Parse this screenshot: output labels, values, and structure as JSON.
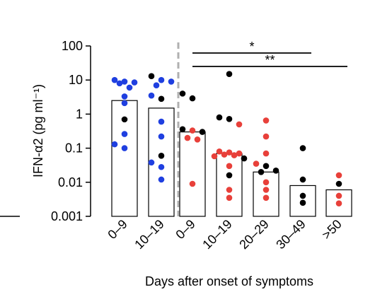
{
  "chart_data": {
    "type": "scatter",
    "title": "",
    "xlabel": "Days after onset of symptoms",
    "ylabel": "IFN-α2 (pg ml⁻¹)",
    "yscale": "log",
    "ylim": [
      0.001,
      100
    ],
    "yticks": [
      {
        "value": 0.001,
        "label": "0.001"
      },
      {
        "value": 0.01,
        "label": "0.01"
      },
      {
        "value": 0.1,
        "label": "0.1"
      },
      {
        "value": 1,
        "label": "1"
      },
      {
        "value": 10,
        "label": "10"
      },
      {
        "value": 100,
        "label": "100"
      }
    ],
    "grid": false,
    "legend": "none",
    "colors": {
      "blue": "#1f3fe0",
      "black": "#000000",
      "red": "#e8403a",
      "divider": "#b0b0b0"
    },
    "divider_after_group": 1,
    "groups": [
      {
        "label": "0–9",
        "bar": 2.5,
        "points": [
          {
            "y": 8,
            "c": "blue"
          },
          {
            "y": 8.5,
            "c": "blue"
          },
          {
            "y": 9,
            "c": "blue"
          },
          {
            "y": 10,
            "c": "blue"
          },
          {
            "y": 6,
            "c": "blue"
          },
          {
            "y": 3.3,
            "c": "blue"
          },
          {
            "y": 2.1,
            "c": "blue"
          },
          {
            "y": 0.7,
            "c": "black"
          },
          {
            "y": 0.26,
            "c": "blue"
          },
          {
            "y": 0.13,
            "c": "blue"
          },
          {
            "y": 0.1,
            "c": "blue"
          }
        ]
      },
      {
        "label": "10–19",
        "bar": 1.5,
        "points": [
          {
            "y": 13,
            "c": "black"
          },
          {
            "y": 10,
            "c": "blue"
          },
          {
            "y": 9,
            "c": "blue"
          },
          {
            "y": 7,
            "c": "blue"
          },
          {
            "y": 3.5,
            "c": "blue"
          },
          {
            "y": 2.8,
            "c": "black"
          },
          {
            "y": 0.6,
            "c": "blue"
          },
          {
            "y": 0.22,
            "c": "blue"
          },
          {
            "y": 0.06,
            "c": "black"
          },
          {
            "y": 0.038,
            "c": "blue"
          },
          {
            "y": 0.028,
            "c": "blue"
          },
          {
            "y": 0.012,
            "c": "blue"
          }
        ]
      },
      {
        "label": "0–9",
        "bar": 0.3,
        "points": [
          {
            "y": 4,
            "c": "black"
          },
          {
            "y": 2.9,
            "c": "black"
          },
          {
            "y": 0.36,
            "c": "black"
          },
          {
            "y": 0.33,
            "c": "red"
          },
          {
            "y": 0.3,
            "c": "black"
          },
          {
            "y": 0.2,
            "c": "red"
          },
          {
            "y": 0.18,
            "c": "red"
          },
          {
            "y": 0.009,
            "c": "red"
          }
        ]
      },
      {
        "label": "10–19",
        "bar": 0.07,
        "points": [
          {
            "y": 15,
            "c": "black"
          },
          {
            "y": 0.8,
            "c": "black"
          },
          {
            "y": 0.72,
            "c": "black"
          },
          {
            "y": 0.5,
            "c": "red"
          },
          {
            "y": 0.08,
            "c": "red"
          },
          {
            "y": 0.075,
            "c": "red"
          },
          {
            "y": 0.07,
            "c": "red"
          },
          {
            "y": 0.065,
            "c": "red"
          },
          {
            "y": 0.062,
            "c": "red"
          },
          {
            "y": 0.058,
            "c": "red"
          },
          {
            "y": 0.05,
            "c": "black"
          },
          {
            "y": 0.03,
            "c": "red"
          },
          {
            "y": 0.016,
            "c": "black"
          },
          {
            "y": 0.006,
            "c": "red"
          },
          {
            "y": 0.0035,
            "c": "red"
          }
        ]
      },
      {
        "label": "20–29",
        "bar": 0.02,
        "points": [
          {
            "y": 0.65,
            "c": "red"
          },
          {
            "y": 0.22,
            "c": "red"
          },
          {
            "y": 0.07,
            "c": "red"
          },
          {
            "y": 0.035,
            "c": "red"
          },
          {
            "y": 0.03,
            "c": "black"
          },
          {
            "y": 0.022,
            "c": "black"
          },
          {
            "y": 0.02,
            "c": "black"
          },
          {
            "y": 0.01,
            "c": "red"
          },
          {
            "y": 0.006,
            "c": "red"
          },
          {
            "y": 0.0035,
            "c": "red"
          }
        ]
      },
      {
        "label": "30–49",
        "bar": 0.008,
        "points": [
          {
            "y": 0.1,
            "c": "black"
          },
          {
            "y": 0.012,
            "c": "black"
          },
          {
            "y": 0.004,
            "c": "black"
          },
          {
            "y": 0.0025,
            "c": "black"
          }
        ]
      },
      {
        "label": ">50",
        "bar": 0.006,
        "points": [
          {
            "y": 0.016,
            "c": "red"
          },
          {
            "y": 0.009,
            "c": "black"
          },
          {
            "y": 0.004,
            "c": "red"
          },
          {
            "y": 0.0024,
            "c": "red"
          }
        ]
      }
    ],
    "significance": [
      {
        "from_group": 2,
        "to_group": 5,
        "label": "*"
      },
      {
        "from_group": 2,
        "to_group": 6,
        "label": "**"
      }
    ]
  }
}
